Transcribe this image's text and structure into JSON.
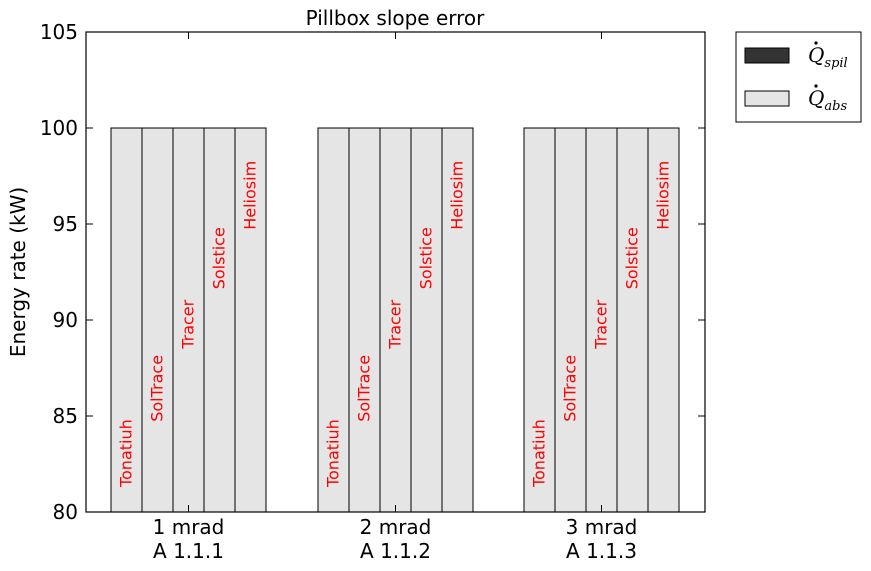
{
  "chart_data": {
    "type": "bar",
    "title": "Pillbox slope error",
    "xlabel": "",
    "ylabel": "Energy rate (kW)",
    "ylim": [
      80,
      105
    ],
    "yticks": [
      "80",
      "85",
      "90",
      "95",
      "100",
      "105"
    ],
    "grid": false,
    "legend_position": "outside-top-right",
    "categories": [
      {
        "line1": "1 mrad",
        "line2": "A 1.1.1"
      },
      {
        "line1": "2 mrad",
        "line2": "A 1.1.2"
      },
      {
        "line1": "3 mrad",
        "line2": "A 1.1.3"
      }
    ],
    "bar_labels": [
      "Tonatiuh",
      "SolTrace",
      "Tracer",
      "Solstice",
      "Heliosim"
    ],
    "label_positions": [
      81.3,
      84.7,
      88.5,
      91.6,
      94.7
    ],
    "series": [
      {
        "name": "Q_spil",
        "legend_symbol": "Q",
        "legend_subscript": "spil",
        "color": "#333333",
        "values": [
          [
            0,
            0,
            0,
            0,
            0
          ],
          [
            0,
            0,
            0,
            0,
            0
          ],
          [
            0,
            0,
            0,
            0,
            0
          ]
        ]
      },
      {
        "name": "Q_abs",
        "legend_symbol": "Q",
        "legend_subscript": "abs",
        "color": "#e5e5e5",
        "values": [
          [
            100,
            100,
            100,
            100,
            100
          ],
          [
            100,
            100,
            100,
            100,
            100
          ],
          [
            100,
            100,
            100,
            100,
            100
          ]
        ]
      }
    ]
  }
}
